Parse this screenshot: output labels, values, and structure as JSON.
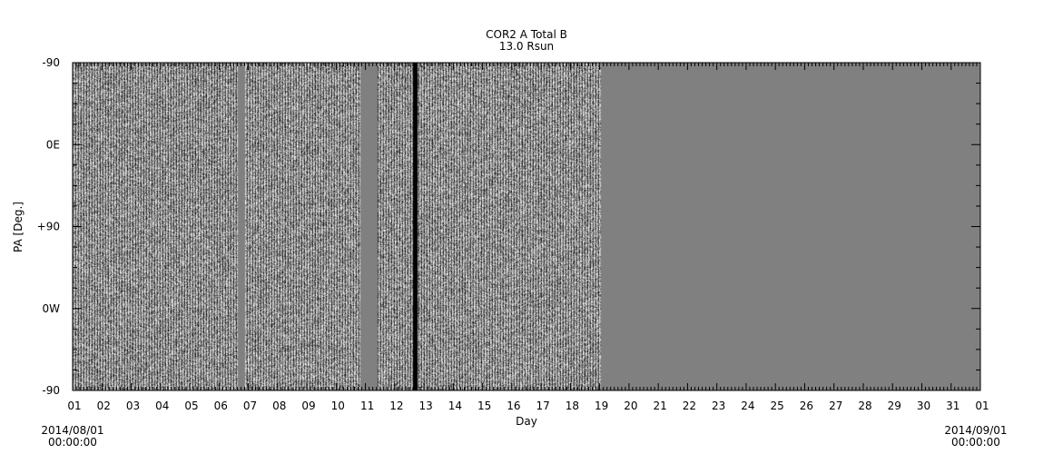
{
  "chart_data": {
    "type": "heatmap",
    "title": "COR2 A Total B",
    "subtitle": "13.0 Rsun",
    "xlabel": "Day",
    "ylabel": "PA [Deg.]",
    "xlim": [
      1,
      32
    ],
    "x_tick_labels": [
      "01",
      "02",
      "03",
      "04",
      "05",
      "06",
      "07",
      "08",
      "09",
      "10",
      "11",
      "12",
      "13",
      "14",
      "15",
      "16",
      "17",
      "18",
      "19",
      "20",
      "21",
      "22",
      "23",
      "24",
      "25",
      "26",
      "27",
      "28",
      "29",
      "30",
      "31",
      "01"
    ],
    "y_tick_labels": [
      "-90",
      "0E",
      "+90",
      "0W",
      "-90"
    ],
    "start_label": {
      "date": "2014/08/01",
      "time": "00:00:00"
    },
    "end_label": {
      "date": "2014/09/01",
      "time": "00:00:00"
    },
    "data_segments": [
      [
        1.0,
        6.64
      ],
      [
        6.89,
        10.83
      ],
      [
        11.42,
        12.62
      ],
      [
        12.78,
        19.04
      ]
    ],
    "black_bands": [
      [
        12.62,
        12.78
      ]
    ],
    "no_data_color": "#808080",
    "grid": false,
    "legend": "none"
  }
}
